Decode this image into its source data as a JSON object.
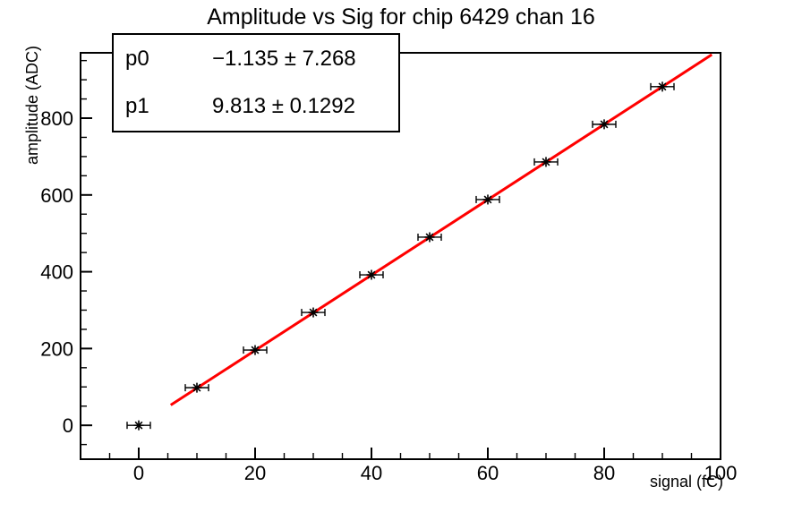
{
  "title": "Amplitude vs Sig for chip 6429 chan 16",
  "stats_box": {
    "rows": [
      {
        "name": "p0",
        "value": "−1.135 ± 7.268"
      },
      {
        "name": "p1",
        "value": "9.813 ± 0.1292"
      }
    ]
  },
  "chart_data": {
    "type": "scatter",
    "title": "Amplitude vs Sig for chip 6429 chan 16",
    "xlabel": "signal (fC)",
    "ylabel": "amplitude (ADC)",
    "xlim": [
      -10,
      100
    ],
    "ylim": [
      -88.2,
      970.2
    ],
    "x": [
      0,
      10,
      20,
      30,
      40,
      50,
      60,
      70,
      80,
      90
    ],
    "y": [
      0,
      98,
      196,
      294,
      392,
      490,
      588,
      686,
      784,
      882
    ],
    "xerr": 2,
    "marker": "asterisk",
    "x_major_ticks": [
      0,
      20,
      40,
      60,
      80,
      100
    ],
    "x_minor_step": 5,
    "y_major_ticks": [
      0,
      200,
      400,
      600,
      800
    ],
    "y_minor_step": 50,
    "grid": false,
    "legend_position": "none",
    "fit": {
      "p0": -1.135,
      "p0_err": 7.268,
      "p1": 9.813,
      "p1_err": 0.1292,
      "draw_range": [
        5.5,
        98.5
      ]
    }
  },
  "colors": {
    "fit_line": "#ff0000",
    "axis": "#000000",
    "marker": "#000000",
    "background": "#ffffff"
  }
}
